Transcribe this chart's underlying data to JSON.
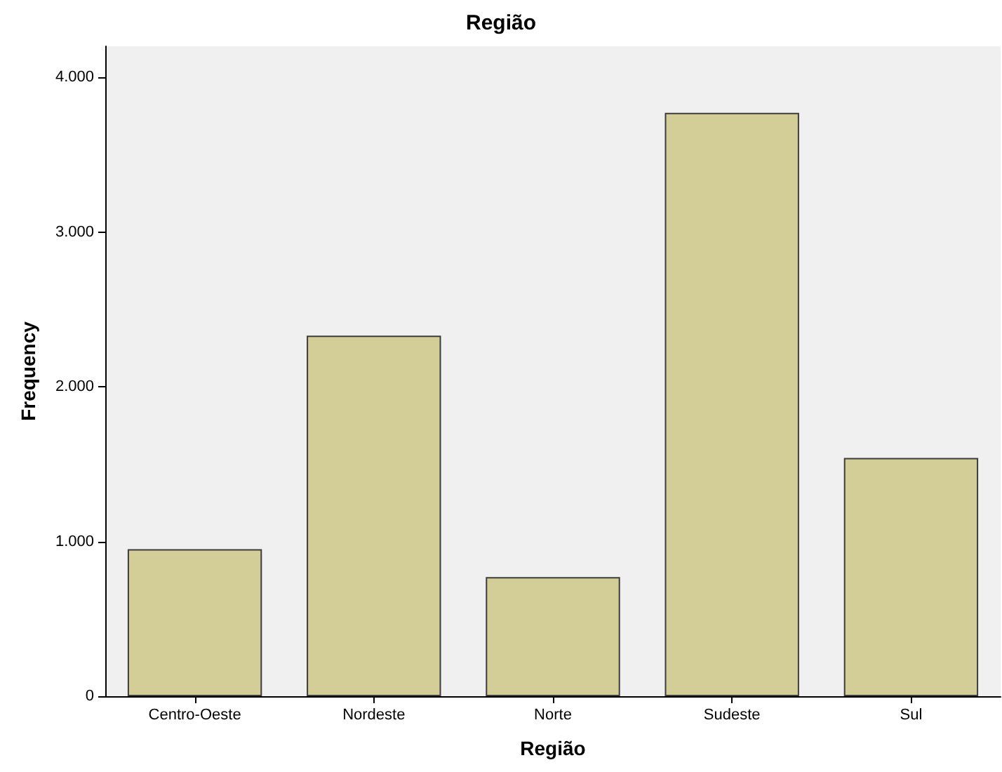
{
  "chart_data": {
    "type": "bar",
    "title": "Região",
    "xlabel": "Região",
    "ylabel": "Frequency",
    "categories": [
      "Centro-Oeste",
      "Nordeste",
      "Norte",
      "Sudeste",
      "Sul"
    ],
    "values": [
      950,
      2330,
      770,
      3770,
      1540
    ],
    "color": "#d3ce97",
    "ylim": [
      0,
      4200
    ],
    "yticks": [
      0,
      {
        "value": 1000,
        "label": "1.000"
      },
      {
        "value": 2000,
        "label": "2.000"
      },
      {
        "value": 3000,
        "label": "3.000"
      },
      {
        "value": 4000,
        "label": "4.000"
      }
    ],
    "grid": false
  }
}
